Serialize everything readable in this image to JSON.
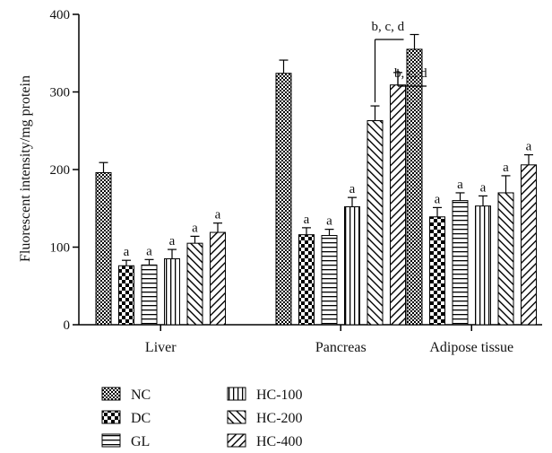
{
  "chart_data": {
    "type": "bar",
    "ylabel": "Fluorescent intensity/mg protein",
    "xlabel": "",
    "ylim": [
      0,
      400
    ],
    "yticks": [
      0,
      100,
      200,
      300,
      400
    ],
    "categories": [
      "Liver",
      "Pancreas",
      "Adipose tissue"
    ],
    "grid": false,
    "legend_placement": "bottom",
    "series": [
      {
        "name": "NC",
        "values": [
          196,
          324,
          355
        ],
        "errors": [
          13,
          17,
          19
        ],
        "labels": [
          "",
          "",
          ""
        ],
        "pattern": "checker"
      },
      {
        "name": "DC",
        "values": [
          76,
          116,
          139
        ],
        "errors": [
          7,
          9,
          12
        ],
        "labels": [
          "a",
          "a",
          "a"
        ],
        "pattern": "bigchecker"
      },
      {
        "name": "GL",
        "values": [
          77,
          115,
          160
        ],
        "errors": [
          7,
          8,
          10
        ],
        "labels": [
          "a",
          "a",
          "a"
        ],
        "pattern": "hlines"
      },
      {
        "name": "HC-100",
        "values": [
          85,
          152,
          153
        ],
        "errors": [
          12,
          12,
          13
        ],
        "labels": [
          "a",
          "a",
          "a"
        ],
        "pattern": "vlines"
      },
      {
        "name": "HC-200",
        "values": [
          105,
          263,
          170
        ],
        "errors": [
          9,
          19,
          22
        ],
        "labels": [
          "a",
          "",
          "a"
        ],
        "pattern": "diag"
      },
      {
        "name": "HC-400",
        "values": [
          119,
          309,
          206
        ],
        "errors": [
          12,
          16,
          13
        ],
        "labels": [
          "a",
          "",
          "a"
        ],
        "pattern": "antidiag"
      }
    ],
    "annotations": [
      {
        "text": "b, c, d",
        "category": "Pancreas",
        "series": "HC-200"
      },
      {
        "text": "b, c, d",
        "category": "Pancreas",
        "series": "HC-400"
      }
    ]
  }
}
